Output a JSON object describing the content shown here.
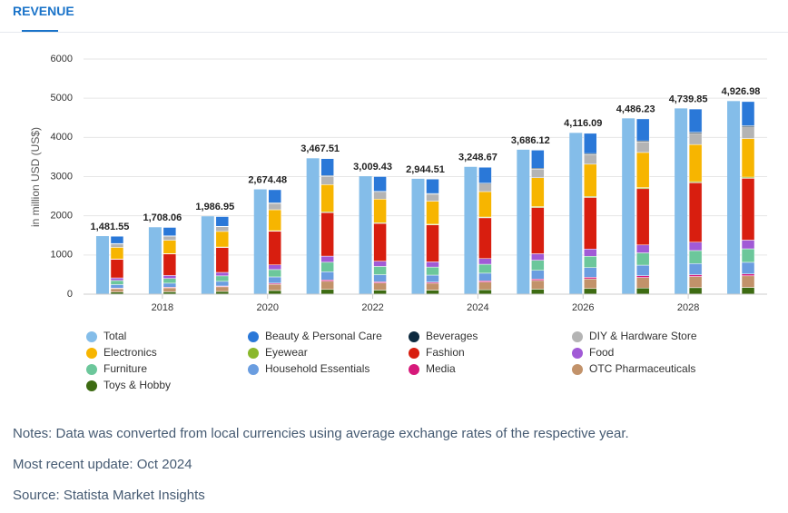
{
  "tab": "REVENUE",
  "notes": [
    "Notes: Data was converted from local currencies using average exchange rates of the respective year.",
    "Most recent update: Oct 2024",
    "Source: Statista Market Insights"
  ],
  "chart_data": {
    "type": "bar",
    "ylabel": "in million USD (US$)",
    "categories": [
      null,
      "2018",
      null,
      "2020",
      null,
      "2022",
      null,
      "2024",
      null,
      "2026",
      null,
      "2028",
      null
    ],
    "ylim": [
      0,
      6000
    ],
    "yticks": [
      0,
      1000,
      2000,
      3000,
      4000,
      5000,
      6000
    ],
    "grid": true,
    "series": [
      {
        "name": "Total",
        "color": "#84bde9",
        "values": [
          1481.55,
          1708.06,
          1986.95,
          2674.48,
          3467.51,
          3009.43,
          2944.51,
          3248.67,
          3686.12,
          4116.09,
          4486.23,
          4739.85,
          4926.98
        ],
        "value_labels": [
          "1,481.55",
          "1,708.06",
          "1,986.95",
          "2,674.48",
          "3,467.51",
          "3,009.43",
          "2,944.51",
          "3,248.67",
          "3,686.12",
          "4,116.09",
          "4,486.23",
          "4,739.85",
          "4,926.98"
        ]
      },
      {
        "name": "Beauty & Personal Care",
        "color": "#2a78d8",
        "values": [
          185,
          214,
          248,
          334,
          433,
          376,
          368,
          406,
          461,
          515,
          561,
          593,
          616
        ]
      },
      {
        "name": "Beverages",
        "color": "#0d2a3f",
        "values": [
          9,
          10,
          12,
          16,
          21,
          18,
          18,
          19,
          22,
          25,
          27,
          28,
          30
        ]
      },
      {
        "name": "DIY & Hardware Store",
        "color": "#b4b4b4",
        "values": [
          89,
          102,
          119,
          160,
          208,
          181,
          177,
          195,
          221,
          247,
          269,
          284,
          296
        ]
      },
      {
        "name": "Electronics",
        "color": "#f7b500",
        "values": [
          296,
          342,
          397,
          535,
          694,
          602,
          589,
          650,
          737,
          823,
          897,
          948,
          985
        ]
      },
      {
        "name": "Eyewear",
        "color": "#8ab82c",
        "values": [
          9,
          10,
          12,
          16,
          21,
          18,
          18,
          19,
          22,
          25,
          27,
          28,
          30
        ]
      },
      {
        "name": "Fashion",
        "color": "#d81e0f",
        "values": [
          474,
          547,
          636,
          856,
          1110,
          963,
          942,
          1040,
          1180,
          1317,
          1436,
          1517,
          1577
        ]
      },
      {
        "name": "Food",
        "color": "#a15ad6",
        "values": [
          67,
          77,
          89,
          120,
          156,
          135,
          133,
          146,
          166,
          185,
          202,
          213,
          222
        ]
      },
      {
        "name": "Furniture",
        "color": "#6cc79b",
        "values": [
          104,
          120,
          139,
          187,
          243,
          211,
          206,
          227,
          258,
          288,
          314,
          332,
          345
        ]
      },
      {
        "name": "Household Essentials",
        "color": "#6a9de0",
        "values": [
          89,
          102,
          119,
          160,
          208,
          181,
          177,
          195,
          221,
          247,
          269,
          284,
          296
        ]
      },
      {
        "name": "Media",
        "color": "#d6197a",
        "values": [
          15,
          17,
          20,
          27,
          35,
          30,
          29,
          32,
          37,
          41,
          45,
          47,
          49
        ]
      },
      {
        "name": "OTC Pharmaceuticals",
        "color": "#c2926a",
        "values": [
          89,
          102,
          119,
          160,
          208,
          181,
          177,
          195,
          221,
          247,
          269,
          284,
          296
        ]
      },
      {
        "name": "Toys & Hobby",
        "color": "#3d6b12",
        "values": [
          52,
          60,
          70,
          94,
          121,
          105,
          103,
          114,
          129,
          144,
          157,
          166,
          172
        ]
      }
    ]
  }
}
